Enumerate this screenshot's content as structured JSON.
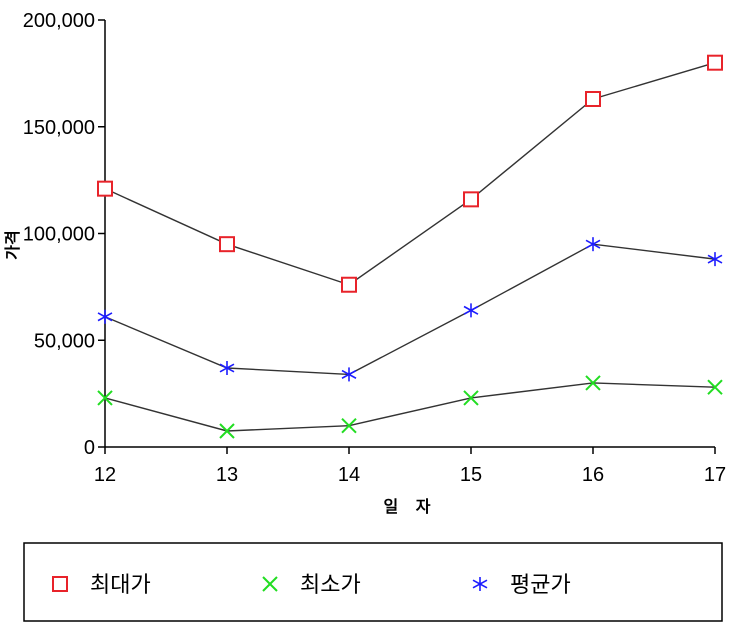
{
  "chart_data": {
    "type": "line",
    "x": [
      12,
      13,
      14,
      15,
      16,
      17
    ],
    "xlabel": "일 자",
    "ylabel": "가격",
    "xlim": [
      12,
      17
    ],
    "ylim": [
      0,
      200000
    ],
    "yticks": [
      0,
      50000,
      100000,
      150000,
      200000
    ],
    "ytick_labels": [
      "0",
      "50,000",
      "100,000",
      "150,000",
      "200,000"
    ],
    "xtick_labels": [
      "12",
      "13",
      "14",
      "15",
      "16",
      "17"
    ],
    "grid": false,
    "legend_position": "bottom",
    "series": [
      {
        "name": "최대가",
        "marker": "square",
        "color": "#e8232a",
        "values": [
          121000,
          95000,
          76000,
          116000,
          163000,
          180000
        ]
      },
      {
        "name": "최소가",
        "marker": "x",
        "color": "#22dd22",
        "values": [
          23000,
          7500,
          10000,
          23000,
          30000,
          28000
        ]
      },
      {
        "name": "평균가",
        "marker": "asterisk",
        "color": "#1c1cff",
        "values": [
          61000,
          37000,
          34000,
          64000,
          95000,
          88000
        ]
      }
    ]
  }
}
